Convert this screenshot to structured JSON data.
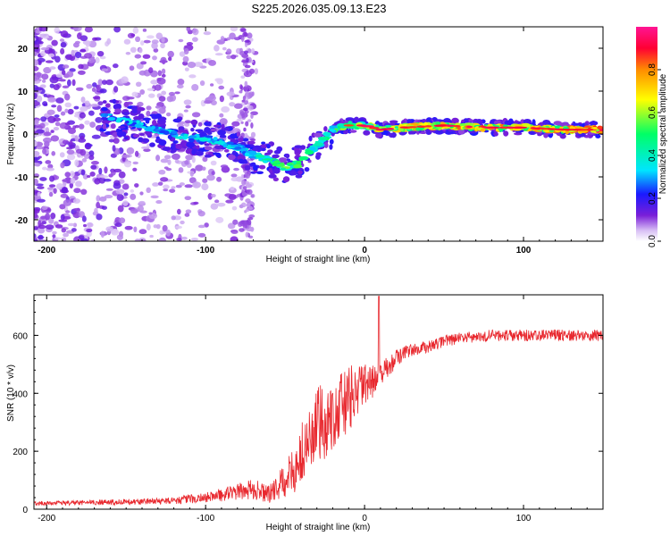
{
  "title": "S225.2026.035.09.13.E23",
  "chart_data": [
    {
      "type": "heatmap",
      "name": "spectrogram",
      "xlabel": "Height of straight line (km)",
      "ylabel": "Frequency (Hz)",
      "xlim": [
        -208,
        150
      ],
      "ylim": [
        -25,
        25
      ],
      "xticks": [
        -200,
        -100,
        0,
        100
      ],
      "yticks": [
        20,
        10,
        0,
        -10,
        -20
      ],
      "colorbar": {
        "label": "Normalized spectral amplitude",
        "range": [
          0,
          1
        ],
        "ticks": [
          0.0,
          0.2,
          0.4,
          0.6,
          0.8
        ],
        "tick_labels": [
          "0.0",
          "0.2",
          "0.4",
          "0.6",
          "0.8"
        ],
        "colors": [
          "#ffffff",
          "#c9a6f0",
          "#7a1fd8",
          "#1a1aff",
          "#00e5ff",
          "#00ff66",
          "#ffff00",
          "#ff8c00",
          "#ff0033",
          "#ff1493"
        ]
      },
      "ridge": {
        "x": [
          -160,
          -150,
          -140,
          -130,
          -120,
          -110,
          -100,
          -90,
          -80,
          -70,
          -60,
          -50,
          -42,
          -35,
          -28,
          -20,
          -10,
          0,
          10,
          25,
          50,
          75,
          100,
          125,
          150
        ],
        "y": [
          4,
          3,
          2,
          1,
          0,
          -1,
          -1,
          -2,
          -3,
          -5,
          -6,
          -8,
          -7,
          -4,
          -2,
          1,
          2,
          2,
          1,
          1.5,
          2,
          1.5,
          1.5,
          1,
          1
        ],
        "amplitude": [
          0.3,
          0.35,
          0.35,
          0.4,
          0.35,
          0.35,
          0.4,
          0.35,
          0.35,
          0.35,
          0.45,
          0.55,
          0.5,
          0.45,
          0.45,
          0.5,
          0.6,
          0.6,
          0.65,
          0.7,
          0.75,
          0.8,
          0.7,
          0.75,
          0.9
        ]
      }
    },
    {
      "type": "line",
      "name": "snr",
      "xlabel": "Height of straight line (km)",
      "ylabel": "SNR (10 * v/v)",
      "xlim": [
        -208,
        150
      ],
      "ylim": [
        0,
        740
      ],
      "xticks": [
        -200,
        -100,
        0,
        100
      ],
      "yticks": [
        0,
        200,
        400,
        600
      ],
      "color": "#e8282e",
      "series": [
        {
          "name": "SNR",
          "x": [
            -208,
            -180,
            -150,
            -120,
            -100,
            -80,
            -70,
            -60,
            -50,
            -45,
            -40,
            -35,
            -30,
            -25,
            -20,
            -15,
            -10,
            -5,
            0,
            5,
            10,
            15,
            20,
            25,
            30,
            40,
            50,
            60,
            80,
            90,
            100,
            120,
            150
          ],
          "y": [
            20,
            22,
            25,
            30,
            40,
            60,
            70,
            50,
            100,
            130,
            180,
            230,
            280,
            300,
            330,
            350,
            380,
            410,
            420,
            440,
            470,
            490,
            520,
            540,
            550,
            560,
            580,
            590,
            600,
            600,
            600,
            600,
            600
          ],
          "noise": [
            8,
            8,
            10,
            12,
            18,
            28,
            35,
            30,
            60,
            80,
            110,
            130,
            140,
            140,
            130,
            120,
            110,
            100,
            80,
            60,
            45,
            35,
            30,
            25,
            22,
            20,
            20,
            20,
            20,
            20,
            20,
            20,
            20
          ]
        }
      ],
      "peak": {
        "x": 9,
        "y": 735
      }
    }
  ]
}
